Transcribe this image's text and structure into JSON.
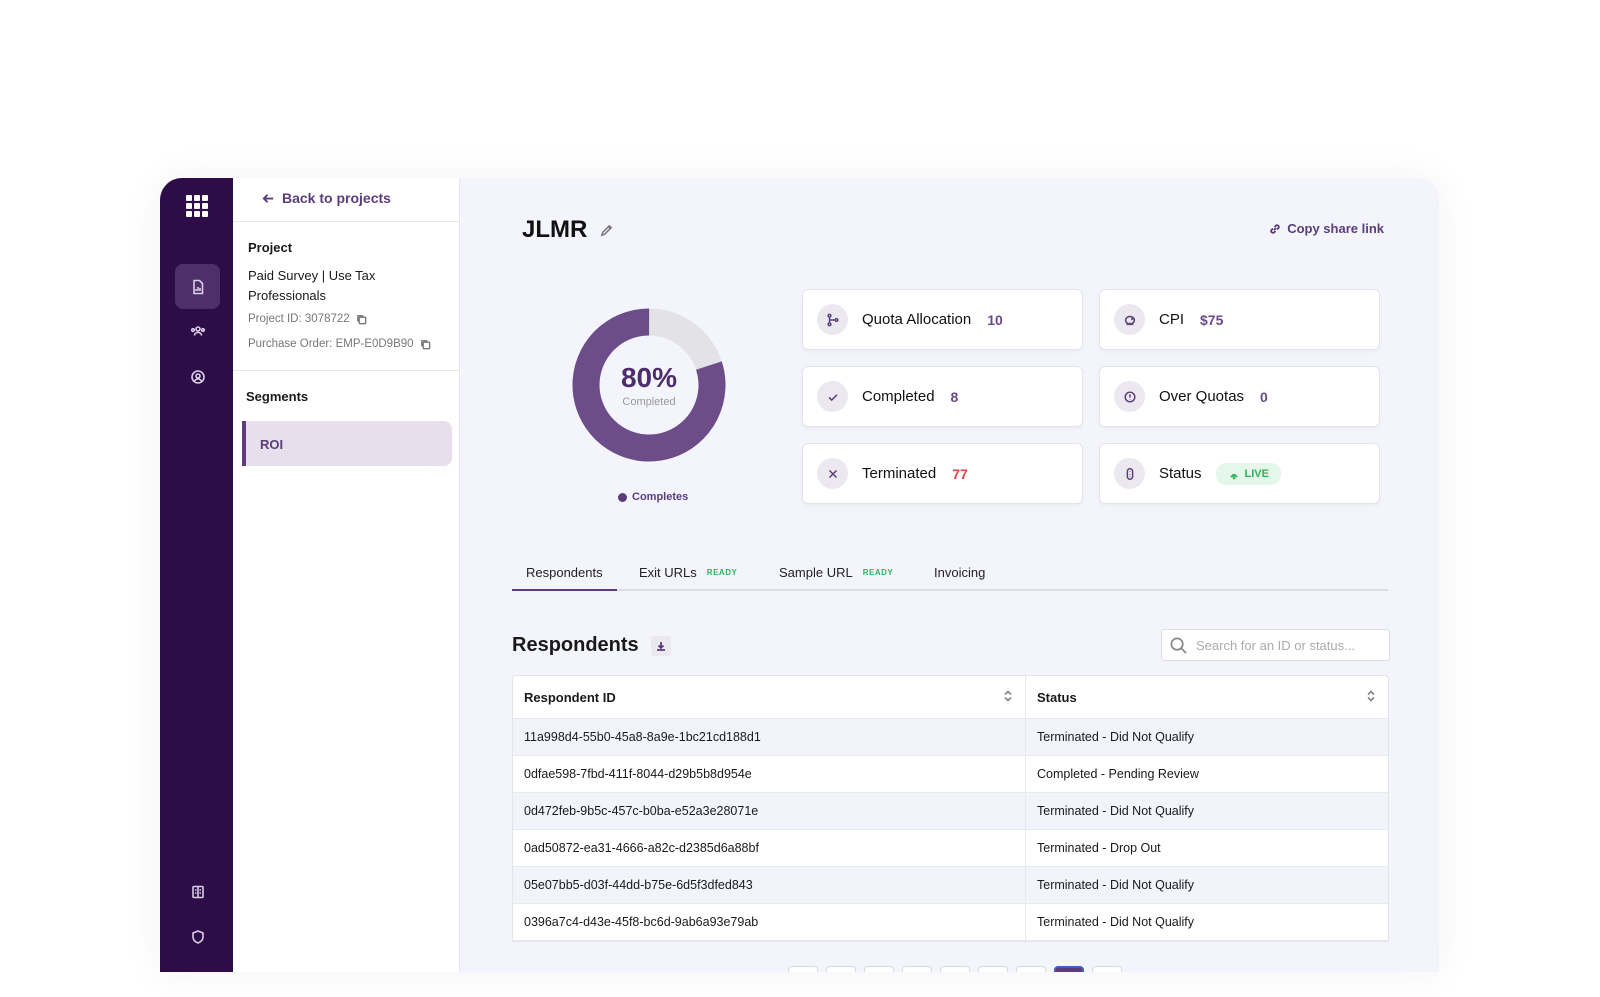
{
  "panel": {
    "back_label": "Back to projects",
    "project_label": "Project",
    "project_name": "Paid Survey | Use Tax Professionals",
    "project_id": "Project ID: 3078722",
    "purchase_order": "Purchase Order: EMP-E0D9B90",
    "segments_label": "Segments",
    "segments": [
      {
        "label": "ROI"
      }
    ]
  },
  "main": {
    "title": "JLMR",
    "share_label": "Copy share link",
    "donut": {
      "percent": 80,
      "percent_label": "80%",
      "sub_label": "Completed",
      "legend": "Completes"
    },
    "cards": {
      "quota": {
        "label": "Quota Allocation",
        "value": "10"
      },
      "cpi": {
        "label": "CPI",
        "value": "$75"
      },
      "completed": {
        "label": "Completed",
        "value": "8"
      },
      "over_quotas": {
        "label": "Over Quotas",
        "value": "0"
      },
      "terminated": {
        "label": "Terminated",
        "value": "77"
      },
      "status": {
        "label": "Status",
        "value": "LIVE"
      }
    },
    "tabs": [
      {
        "label": "Respondents",
        "badge": ""
      },
      {
        "label": "Exit URLs",
        "badge": "READY"
      },
      {
        "label": "Sample URL",
        "badge": "READY"
      },
      {
        "label": "Invoicing",
        "badge": ""
      }
    ],
    "respondents_title": "Respondents",
    "search_placeholder": "Search for an ID or status...",
    "table": {
      "headers": [
        "Respondent ID",
        "Status"
      ],
      "rows": [
        [
          "11a998d4-55b0-45a8-8a9e-1bc21cd188d1",
          "Terminated - Did Not Qualify"
        ],
        [
          "0dfae598-7fbd-411f-8044-d29b5b8d954e",
          "Completed - Pending Review"
        ],
        [
          "0d472feb-9b5c-457c-b0ba-e52a3e28071e",
          "Terminated - Did Not Qualify"
        ],
        [
          "0ad50872-ea31-4666-a82c-d2385d6a88bf",
          "Terminated - Drop Out"
        ],
        [
          "05e07bb5-d03f-44dd-b75e-6d5f3dfed843",
          "Terminated - Did Not Qualify"
        ],
        [
          "0396a7c4-d43e-45f8-bc6d-9ab6a93e79ab",
          "Terminated - Did Not Qualify"
        ]
      ]
    }
  },
  "colors": {
    "rail": "#2e0c47",
    "accent": "#5a3d7a",
    "live": "#2fb25a",
    "danger": "#e04545"
  }
}
